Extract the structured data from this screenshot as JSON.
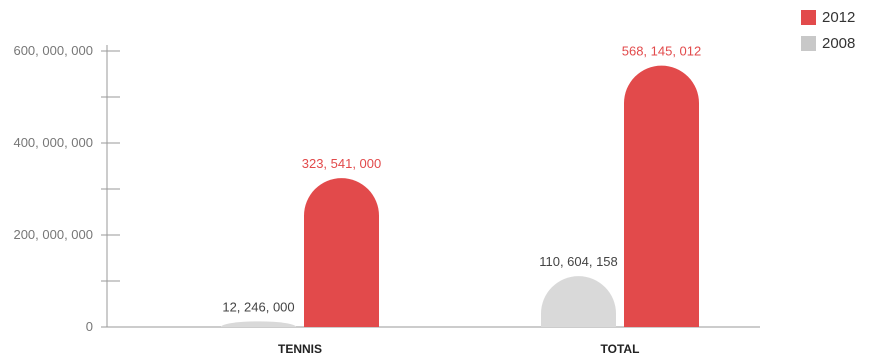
{
  "chart_data": {
    "type": "bar",
    "title": "",
    "xlabel": "",
    "ylabel": "",
    "categories": [
      "TENNIS",
      "TOTAL"
    ],
    "series": [
      {
        "name": "2008",
        "values": [
          12246000,
          110604158
        ],
        "labels": [
          "12, 246, 000",
          "110, 604, 158"
        ],
        "color": "#d9d9d9",
        "label_color": "#444444"
      },
      {
        "name": "2012",
        "values": [
          323541000,
          568145012
        ],
        "labels": [
          "323, 541, 000",
          "568, 145, 012"
        ],
        "color": "#e24a4b",
        "label_color": "#e24a4b"
      }
    ],
    "ylim": [
      0,
      600000000
    ],
    "y_ticks": [
      0,
      200000000,
      400000000,
      600000000
    ],
    "y_tick_labels": [
      "0",
      "200, 000, 000",
      "400, 000, 000",
      "600, 000, 000"
    ],
    "y_minor_ticks": [
      100000000,
      300000000,
      500000000
    ],
    "grid": false,
    "legend_position": "top-right"
  },
  "legend": {
    "items": [
      {
        "label": "2012",
        "color": "#e24a4b"
      },
      {
        "label": "2008",
        "color": "#c8c8c8"
      }
    ]
  }
}
